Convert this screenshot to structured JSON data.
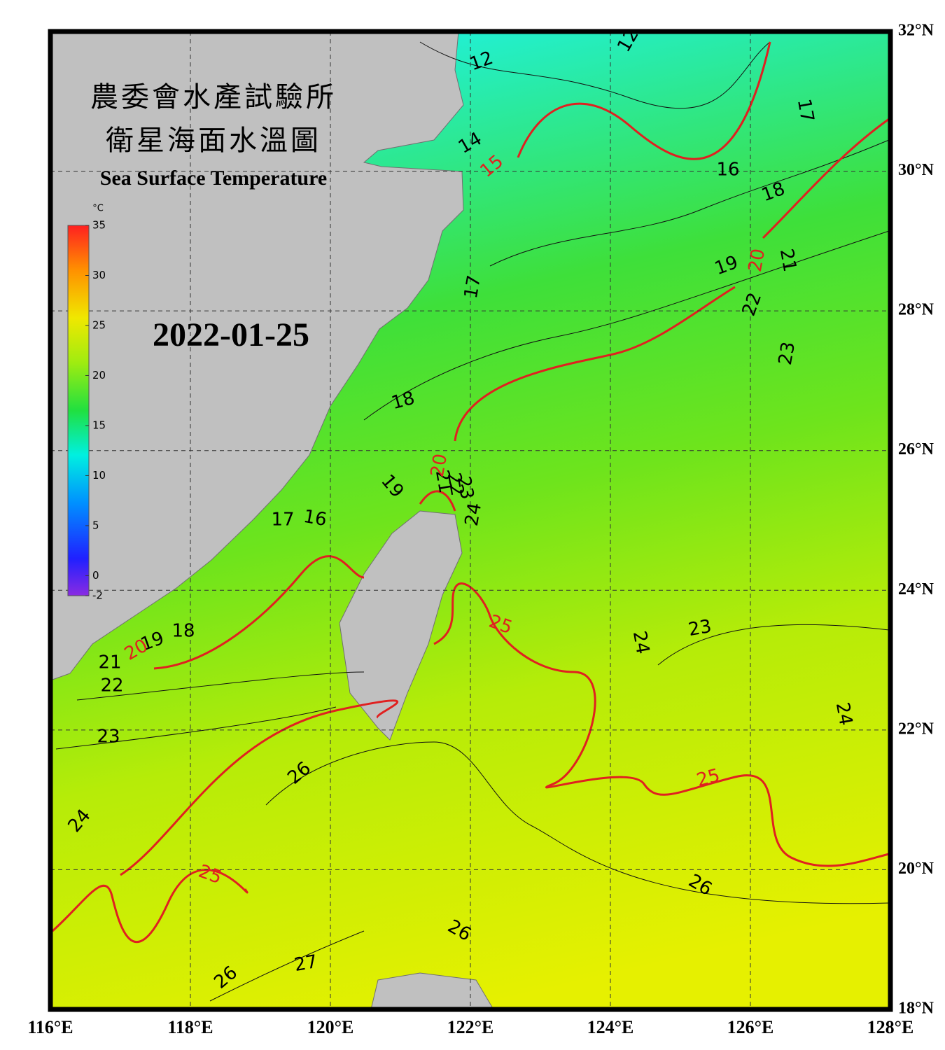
{
  "header": {
    "title_zh": "農委會水產試驗所",
    "subtitle_zh": "衛星海面水溫圖",
    "title_en": "Sea Surface Temperature",
    "date": "2022-01-25"
  },
  "map": {
    "xlim": [
      116,
      128
    ],
    "ylim": [
      18,
      32
    ],
    "xticks": [
      {
        "value": 116,
        "label": "116°E"
      },
      {
        "value": 118,
        "label": "118°E"
      },
      {
        "value": 120,
        "label": "120°E"
      },
      {
        "value": 122,
        "label": "122°E"
      },
      {
        "value": 124,
        "label": "124°E"
      },
      {
        "value": 126,
        "label": "126°E"
      },
      {
        "value": 128,
        "label": "128°E"
      }
    ],
    "yticks": [
      {
        "value": 32,
        "label": "32°N"
      },
      {
        "value": 30,
        "label": "30°N"
      },
      {
        "value": 28,
        "label": "28°N"
      },
      {
        "value": 26,
        "label": "26°N"
      },
      {
        "value": 24,
        "label": "24°N"
      },
      {
        "value": 22,
        "label": "22°N"
      },
      {
        "value": 20,
        "label": "20°N"
      },
      {
        "value": 18,
        "label": "18°N"
      }
    ]
  },
  "colorbar": {
    "unit": "°C",
    "range": [
      -2,
      35
    ],
    "ticks": [
      35,
      30,
      25,
      20,
      15,
      10,
      5,
      0,
      -2
    ]
  },
  "contour_labels": {
    "black": [
      12,
      12,
      17,
      14,
      16,
      18,
      19,
      21,
      22,
      23,
      17,
      18,
      19,
      21,
      22,
      23,
      24,
      17,
      16,
      18,
      19,
      21,
      22,
      23,
      24,
      24,
      23,
      24,
      26,
      26,
      26,
      27,
      26
    ],
    "red": [
      15,
      20,
      20,
      20,
      25,
      25,
      25
    ]
  }
}
